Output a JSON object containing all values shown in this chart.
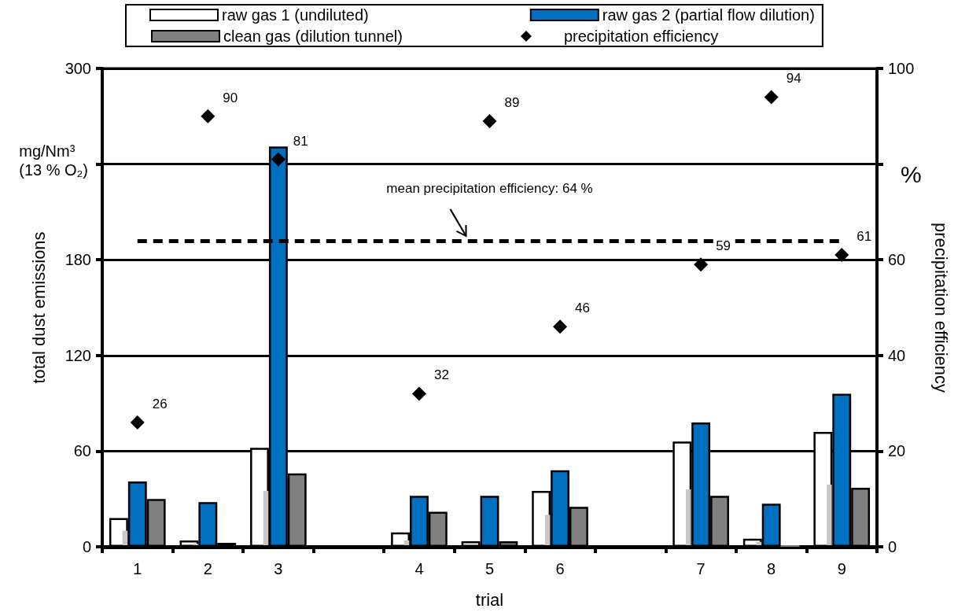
{
  "chart_data": {
    "type": "bar",
    "xlabel": "trial",
    "ylabel": "total dust emissions",
    "y2label": "precipitation efficiency",
    "categories": [
      "1",
      "2",
      "3",
      null,
      "4",
      "5",
      "6",
      null,
      "7",
      "8",
      "9"
    ],
    "series": [
      {
        "name": "raw gas 1 (undiluted)",
        "color": "#ffffff",
        "values": [
          18,
          4,
          62,
          null,
          9,
          3.5,
          35,
          null,
          66,
          5,
          72
        ]
      },
      {
        "type": "bar",
        "color": "#c8c8c8",
        "values": [
          10,
          2,
          35,
          null,
          4,
          null,
          20,
          null,
          36,
          3,
          39
        ]
      },
      {
        "name": "raw gas 2 (partial flow dilution)",
        "color": "#0070c0",
        "values": [
          41,
          28,
          251,
          null,
          32,
          32,
          48,
          null,
          78,
          27,
          96
        ]
      },
      {
        "name": "clean gas (dilution tunnel)",
        "color": "#808080",
        "values": [
          30,
          2.5,
          46,
          null,
          22,
          3.5,
          25,
          null,
          32,
          1,
          37
        ]
      },
      {
        "name": "precipitation efficiency",
        "type": "scatter",
        "axis": "y2",
        "color": "#000000",
        "x": [
          "1",
          "2",
          "3",
          "4",
          "5",
          "6",
          "7",
          "8",
          "9"
        ],
        "values": [
          26,
          90,
          81,
          32,
          89,
          46,
          59,
          94,
          61
        ],
        "value_labels": [
          "26",
          "90",
          "81",
          "32",
          "89",
          "46",
          "59",
          "94",
          "61"
        ]
      }
    ],
    "ylim": [
      0,
      300
    ],
    "yticks": [
      0,
      60,
      120,
      180,
      {
        "value": 240,
        "label": null
      },
      300
    ],
    "y2lim": [
      0,
      100
    ],
    "y2ticks": [
      0,
      20,
      40,
      60,
      {
        "value": 80,
        "label": null
      },
      100
    ],
    "annotations": [
      "mg/Nm³\n(13 % O₂)",
      "%"
    ],
    "ref_lines": [
      {
        "axis": "y2",
        "value": 64,
        "label": "mean precipitation efficiency: 64 %",
        "color": "#000000",
        "line_style": "dashed"
      }
    ],
    "grid": "y",
    "legend": "top",
    "marker": "diamond"
  }
}
